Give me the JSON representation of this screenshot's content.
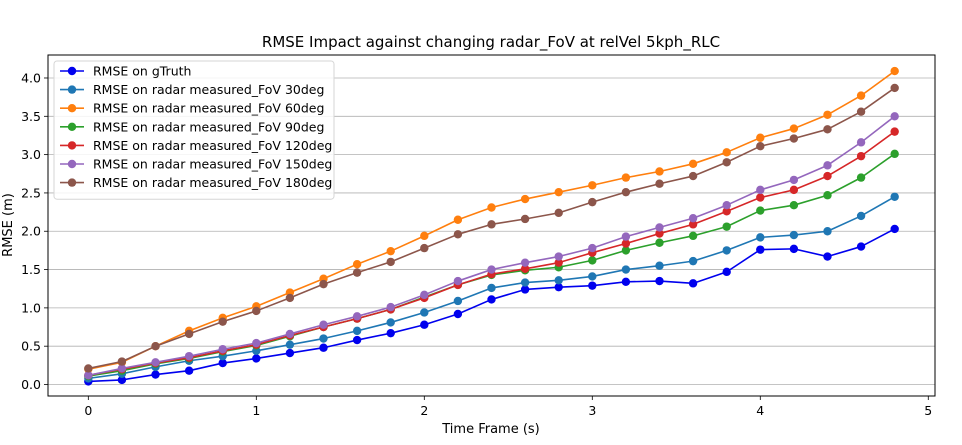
{
  "chart_data": {
    "type": "line",
    "title": "RMSE Impact against changing radar_FoV at relVel 5kph_RLC",
    "xlabel": "Time Frame (s)",
    "ylabel": "RMSE (m)",
    "xlim": [
      -0.24,
      5.04
    ],
    "ylim": [
      -0.15,
      4.3
    ],
    "xticks": [
      0,
      1,
      2,
      3,
      4,
      5
    ],
    "xtick_labels": [
      "0",
      "1",
      "2",
      "3",
      "4",
      "5"
    ],
    "yticks": [
      0.0,
      0.5,
      1.0,
      1.5,
      2.0,
      2.5,
      3.0,
      3.5,
      4.0
    ],
    "ytick_labels": [
      "0.0",
      "0.5",
      "1.0",
      "1.5",
      "2.0",
      "2.5",
      "3.0",
      "3.5",
      "4.0"
    ],
    "grid": "horizontal",
    "legend_position": "top-left",
    "x": [
      0,
      0.2,
      0.4,
      0.6,
      0.8,
      1.0,
      1.2,
      1.4,
      1.6,
      1.8,
      2.0,
      2.2,
      2.4,
      2.6,
      2.8,
      3.0,
      3.2,
      3.4,
      3.6,
      3.8,
      4.0,
      4.2,
      4.4,
      4.6,
      4.8
    ],
    "series": [
      {
        "name": "RMSE on gTruth",
        "color": "#0000ee",
        "values": [
          0.04,
          0.06,
          0.13,
          0.18,
          0.28,
          0.34,
          0.41,
          0.48,
          0.58,
          0.67,
          0.78,
          0.92,
          1.11,
          1.24,
          1.27,
          1.29,
          1.34,
          1.35,
          1.32,
          1.47,
          1.76,
          1.77,
          1.67,
          1.8,
          2.03
        ]
      },
      {
        "name": "RMSE on radar measured_FoV 30deg",
        "color": "#1f77b4",
        "values": [
          0.08,
          0.14,
          0.23,
          0.31,
          0.37,
          0.44,
          0.52,
          0.6,
          0.7,
          0.81,
          0.94,
          1.09,
          1.26,
          1.33,
          1.36,
          1.41,
          1.5,
          1.55,
          1.61,
          1.75,
          1.92,
          1.95,
          2.0,
          2.2,
          2.45
        ]
      },
      {
        "name": "RMSE on radar measured_FoV 60deg",
        "color": "#ff7f0e",
        "values": [
          0.2,
          0.29,
          0.5,
          0.7,
          0.87,
          1.02,
          1.2,
          1.38,
          1.57,
          1.74,
          1.94,
          2.15,
          2.31,
          2.42,
          2.51,
          2.6,
          2.7,
          2.78,
          2.88,
          3.03,
          3.22,
          3.34,
          3.52,
          3.77,
          4.09
        ]
      },
      {
        "name": "RMSE on radar measured_FoV 90deg",
        "color": "#2ca02c",
        "values": [
          0.11,
          0.18,
          0.27,
          0.34,
          0.43,
          0.51,
          0.63,
          0.75,
          0.86,
          0.98,
          1.14,
          1.3,
          1.43,
          1.49,
          1.53,
          1.62,
          1.75,
          1.85,
          1.94,
          2.06,
          2.27,
          2.34,
          2.47,
          2.7,
          3.01
        ]
      },
      {
        "name": "RMSE on radar measured_FoV 120deg",
        "color": "#d62728",
        "values": [
          0.12,
          0.2,
          0.28,
          0.35,
          0.44,
          0.52,
          0.64,
          0.75,
          0.86,
          0.98,
          1.13,
          1.3,
          1.44,
          1.51,
          1.59,
          1.72,
          1.84,
          1.97,
          2.09,
          2.26,
          2.44,
          2.54,
          2.72,
          2.98,
          3.3
        ]
      },
      {
        "name": "RMSE on radar measured_FoV 150deg",
        "color": "#9467bd",
        "values": [
          0.12,
          0.21,
          0.29,
          0.37,
          0.46,
          0.54,
          0.66,
          0.78,
          0.89,
          1.01,
          1.17,
          1.35,
          1.5,
          1.59,
          1.67,
          1.78,
          1.93,
          2.05,
          2.17,
          2.34,
          2.54,
          2.67,
          2.86,
          3.16,
          3.5
        ]
      },
      {
        "name": "RMSE on radar measured_FoV 180deg",
        "color": "#8c564b",
        "values": [
          0.21,
          0.3,
          0.5,
          0.66,
          0.82,
          0.96,
          1.13,
          1.31,
          1.46,
          1.6,
          1.78,
          1.96,
          2.09,
          2.16,
          2.24,
          2.38,
          2.51,
          2.62,
          2.72,
          2.9,
          3.11,
          3.21,
          3.33,
          3.56,
          3.87
        ]
      }
    ]
  }
}
